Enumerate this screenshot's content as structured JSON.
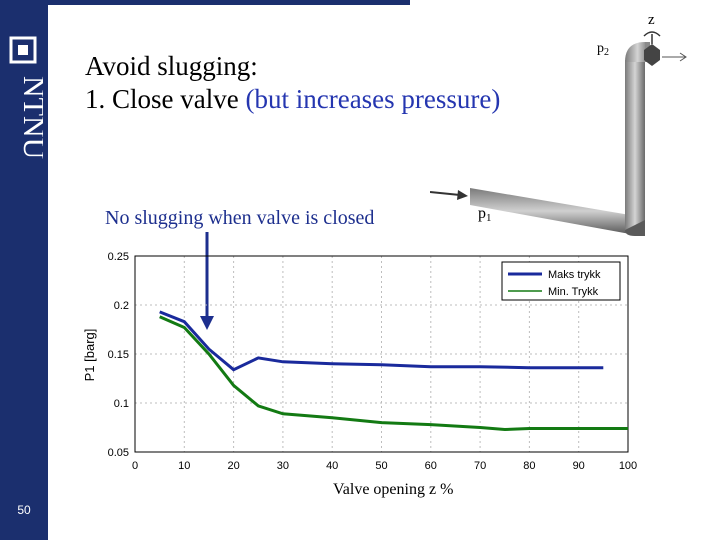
{
  "slide": {
    "title_line1": "Avoid slugging:",
    "title_line2_a": "1. Close valve ",
    "title_line2_b": "(but increases pressure)",
    "callout": "No slugging when valve is closed",
    "page_number": "50",
    "logo_text": "NTNU"
  },
  "diagram": {
    "z_label": "z",
    "p2_label": "p",
    "p2_sub": "2",
    "p1_label": "p",
    "p1_sub": "1"
  },
  "colors": {
    "sidebar": "#1b2f6e",
    "accent_text": "#2536b0",
    "series_max": "#1a2a9c",
    "series_min": "#137a13"
  },
  "chart_data": {
    "type": "line",
    "title": "",
    "xlabel": "Valve opening z %",
    "ylabel": "P1 [barg]",
    "xlim": [
      0,
      100
    ],
    "ylim": [
      0.05,
      0.25
    ],
    "xticks": [
      "0",
      "10",
      "20",
      "30",
      "40",
      "50",
      "60",
      "70",
      "80",
      "90",
      "100"
    ],
    "yticks": [
      "0.05",
      "0.1",
      "0.15",
      "0.2",
      "0.25"
    ],
    "legend_position": "top-right",
    "series": [
      {
        "name": "Maks trykk",
        "x": [
          5,
          10,
          15,
          20,
          25,
          30,
          40,
          50,
          60,
          70,
          80,
          90,
          95
        ],
        "y": [
          0.193,
          0.183,
          0.155,
          0.134,
          0.146,
          0.142,
          0.14,
          0.139,
          0.137,
          0.137,
          0.136,
          0.136,
          0.136
        ]
      },
      {
        "name": "Min. Trykk",
        "x": [
          5,
          10,
          15,
          20,
          25,
          30,
          40,
          50,
          60,
          70,
          75,
          80,
          90,
          100
        ],
        "y": [
          0.188,
          0.177,
          0.15,
          0.118,
          0.097,
          0.089,
          0.085,
          0.08,
          0.078,
          0.075,
          0.073,
          0.074,
          0.074,
          0.074
        ]
      }
    ]
  }
}
